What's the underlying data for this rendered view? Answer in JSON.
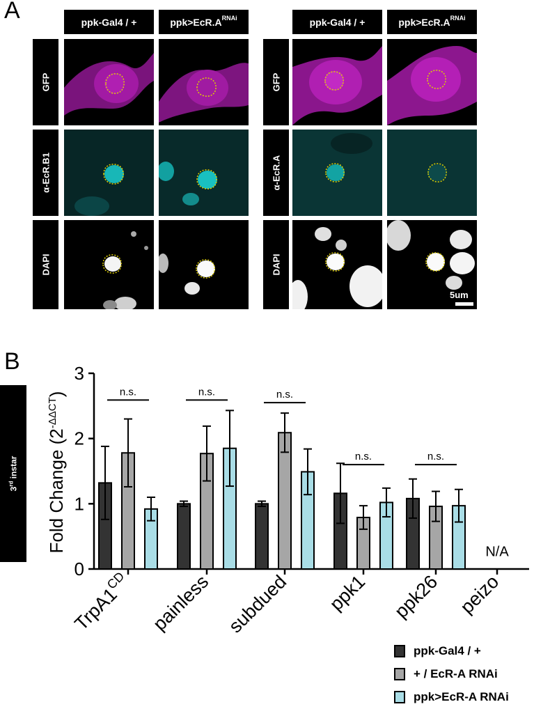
{
  "panel_a": {
    "letter": "A",
    "left_group": {
      "col_headers": [
        {
          "text": "ppk-Gal4  / +",
          "sup": ""
        },
        {
          "text": "ppk>EcR.A",
          "sup": "RNAi"
        }
      ],
      "row_labels": [
        "GFP",
        "α-EcR.B1",
        "DAPI"
      ]
    },
    "right_group": {
      "col_headers": [
        {
          "text": "ppk-Gal4  / +",
          "sup": ""
        },
        {
          "text": "ppk>EcR.A",
          "sup": "RNAi"
        }
      ],
      "row_labels": [
        "GFP",
        "α-EcR.A",
        "DAPI"
      ]
    },
    "scale_bar_label": "5um",
    "channel_colors": {
      "GFP": "#c21fc4",
      "EcR": "#18b7b7",
      "DAPI": "#ffffff",
      "outline": "#e0d000"
    }
  },
  "panel_b": {
    "letter": "B",
    "stage_label": {
      "text": "3",
      "sup": "rd",
      "rest": " instar"
    },
    "legend": [
      {
        "label": "ppk-Gal4 / +",
        "color": "#333333"
      },
      {
        "label": "+ / EcR-A RNAi",
        "color": "#a6a6a6"
      },
      {
        "label": "ppk>EcR-A RNAi",
        "color": "#a9dde6"
      }
    ]
  },
  "chart_data": {
    "type": "bar",
    "ylabel": "Fold Change (2",
    "ylabel_sup": "-ΔΔCT",
    "ylabel_end": ")",
    "ylim": [
      0,
      3
    ],
    "yticks": [
      "0",
      "1",
      "2",
      "3"
    ],
    "categories": [
      {
        "text": "TrpA1",
        "sup": "CD"
      },
      {
        "text": "painless",
        "sup": ""
      },
      {
        "text": "subdued",
        "sup": ""
      },
      {
        "text": "ppk1",
        "sup": ""
      },
      {
        "text": "ppk26",
        "sup": ""
      },
      {
        "text": "peizo",
        "sup": ""
      }
    ],
    "series": [
      {
        "name": "ppk-Gal4 / +",
        "color": "#333333",
        "values": [
          1.32,
          1.0,
          1.0,
          1.16,
          1.08,
          null
        ],
        "errors": [
          0.56,
          0.04,
          0.04,
          0.46,
          0.3,
          null
        ]
      },
      {
        "name": "+ / EcR-A RNAi",
        "color": "#a6a6a6",
        "values": [
          1.78,
          1.77,
          2.09,
          0.79,
          0.96,
          null
        ],
        "errors": [
          0.52,
          0.42,
          0.3,
          0.18,
          0.23,
          null
        ]
      },
      {
        "name": "ppk>EcR-A RNAi",
        "color": "#a9dde6",
        "values": [
          0.92,
          1.85,
          1.49,
          1.02,
          0.97,
          null
        ],
        "errors": [
          0.18,
          0.58,
          0.35,
          0.22,
          0.25,
          null
        ]
      }
    ],
    "annotations": [
      {
        "category": 0,
        "text": "n.s.",
        "y": 2.59
      },
      {
        "category": 1,
        "text": "n.s.",
        "y": 2.59
      },
      {
        "category": 2,
        "text": "n.s.",
        "y": 2.55
      },
      {
        "category": 3,
        "text": "n.s.",
        "y": 1.6
      },
      {
        "category": 4,
        "text": "n.s.",
        "y": 1.6
      },
      {
        "category": 5,
        "text": "N/A",
        "y": 0.25
      }
    ]
  }
}
